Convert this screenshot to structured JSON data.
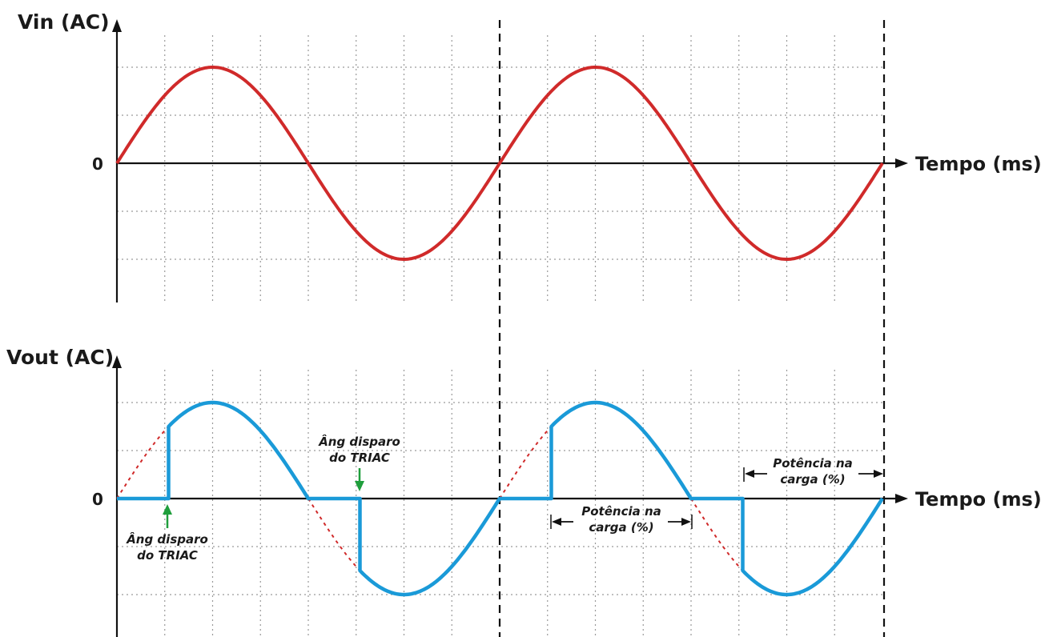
{
  "top_plot": {
    "y_label": "Vin (AC)",
    "zero_label": "0",
    "x_label": "Tempo (ms)"
  },
  "bottom_plot": {
    "y_label": "Vout (AC)",
    "zero_label": "0",
    "x_label": "Tempo (ms)"
  },
  "waveform": {
    "cycles": 2,
    "firing_fraction_of_half_cycle": 0.27
  },
  "annotations": {
    "firing_label_1": [
      "Âng disparo",
      "do TRIAC"
    ],
    "firing_label_2": [
      "Âng disparo",
      "do TRIAC"
    ],
    "power_label_1": [
      "Potência na",
      "carga (%)"
    ],
    "power_label_2": [
      "Potência na",
      "carga (%)"
    ]
  },
  "colors": {
    "vin": "#d02a2a",
    "vout": "#1a9ad8",
    "suppressed": "#d02a2a",
    "firing_arrow": "#1f9e3c",
    "axis": "#111111",
    "grid": "#9a9a9a"
  }
}
